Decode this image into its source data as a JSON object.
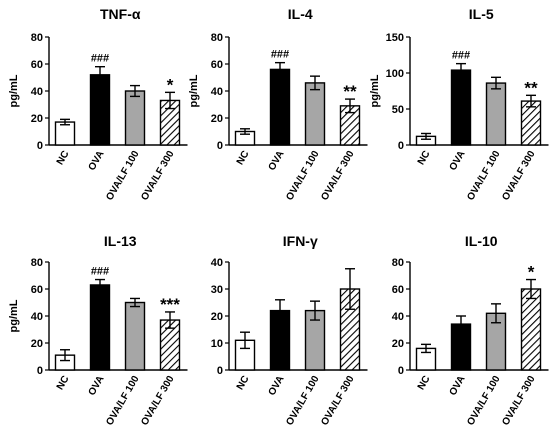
{
  "chart_data": [
    {
      "type": "bar",
      "title": "TNF-α",
      "ylabel": "pg/mL",
      "ylim": [
        0,
        80
      ],
      "yticks": [
        0,
        20,
        40,
        60,
        80
      ],
      "categories": [
        "NC",
        "OVA",
        "OVA/LF 100",
        "OVA/LF 300"
      ],
      "values": [
        17,
        52,
        40,
        33
      ],
      "errors": [
        2,
        6,
        4,
        6
      ],
      "annotations": [
        "",
        "###",
        "",
        "*"
      ]
    },
    {
      "type": "bar",
      "title": "IL-4",
      "ylabel": "pg/mL",
      "ylim": [
        0,
        80
      ],
      "yticks": [
        0,
        20,
        40,
        60,
        80
      ],
      "categories": [
        "NC",
        "OVA",
        "OVA/LF 100",
        "OVA/LF 300"
      ],
      "values": [
        10,
        56,
        46,
        29
      ],
      "errors": [
        2,
        5,
        5,
        5
      ],
      "annotations": [
        "",
        "###",
        "",
        "**"
      ]
    },
    {
      "type": "bar",
      "title": "IL-5",
      "ylabel": "pg/mL",
      "ylim": [
        0,
        150
      ],
      "yticks": [
        0,
        50,
        100,
        150
      ],
      "categories": [
        "NC",
        "OVA",
        "OVA/LF 100",
        "OVA/LF 300"
      ],
      "values": [
        12,
        104,
        86,
        61
      ],
      "errors": [
        4,
        9,
        8,
        8
      ],
      "annotations": [
        "",
        "###",
        "",
        "**"
      ]
    },
    {
      "type": "bar",
      "title": "IL-13",
      "ylabel": "pg/mL",
      "ylim": [
        0,
        80
      ],
      "yticks": [
        0,
        20,
        40,
        60,
        80
      ],
      "categories": [
        "NC",
        "OVA",
        "OVA/LF 100",
        "OVA/LF 300"
      ],
      "values": [
        11,
        63,
        50,
        37
      ],
      "errors": [
        4,
        4,
        3,
        6
      ],
      "annotations": [
        "",
        "###",
        "",
        "***"
      ]
    },
    {
      "type": "bar",
      "title": "IFN-γ",
      "ylabel": "",
      "ylim": [
        0,
        40
      ],
      "yticks": [
        0,
        10,
        20,
        30,
        40
      ],
      "categories": [
        "NC",
        "OVA",
        "OVA/LF 100",
        "OVA/LF 300"
      ],
      "values": [
        11,
        22,
        22,
        30
      ],
      "errors": [
        3,
        4,
        3.5,
        7.5
      ],
      "annotations": [
        "",
        "",
        "",
        ""
      ]
    },
    {
      "type": "bar",
      "title": "IL-10",
      "ylabel": "",
      "ylim": [
        0,
        80
      ],
      "yticks": [
        0,
        20,
        40,
        60,
        80
      ],
      "categories": [
        "NC",
        "OVA",
        "OVA/LF 100",
        "OVA/LF 300"
      ],
      "values": [
        16,
        34,
        42,
        60
      ],
      "errors": [
        3,
        6,
        7,
        7
      ],
      "annotations": [
        "",
        "",
        "",
        "*"
      ]
    }
  ],
  "colors": {
    "nc_fill": "#ffffff",
    "ova_fill": "#000000",
    "lf100_fill": "#a6a6a6",
    "lf300_pattern": "hatched",
    "stroke": "#000000"
  }
}
